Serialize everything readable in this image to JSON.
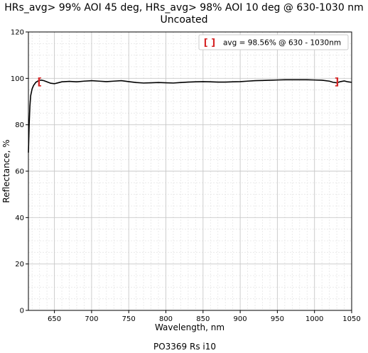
{
  "chart_data": {
    "type": "line",
    "title_line1": "HRs_avg> 99% AOI 45 deg, HRs_avg> 98% AOI 10 deg @ 630-1030 nm",
    "title_line2": "Uncoated",
    "xlabel": "Wavelength, nm",
    "ylabel": "Reflectance, %",
    "footer": "PO3369 Rs i10",
    "xlim": [
      615,
      1050
    ],
    "ylim": [
      0,
      120
    ],
    "x_ticks": [
      650,
      700,
      750,
      800,
      850,
      900,
      950,
      1000,
      1050
    ],
    "y_ticks": [
      0,
      20,
      40,
      60,
      80,
      100,
      120
    ],
    "grid": true,
    "minor_grid": true,
    "line_color": "#000000",
    "marker_color": "#d62728",
    "legend": {
      "marker_text": "[ ]",
      "text": "avg = 98.56% @ 630 - 1030nm",
      "position": "top-right"
    },
    "band_markers": [
      {
        "x": 630,
        "y": 98.5,
        "kind": "["
      },
      {
        "x": 1030,
        "y": 98.5,
        "kind": "]"
      }
    ],
    "series": [
      {
        "x": [
          615,
          616,
          617,
          618,
          620,
          622,
          625,
          628,
          630,
          633,
          636,
          640,
          645,
          650,
          655,
          660,
          670,
          680,
          690,
          700,
          710,
          720,
          730,
          740,
          750,
          760,
          770,
          780,
          790,
          800,
          810,
          820,
          830,
          840,
          850,
          860,
          870,
          880,
          890,
          900,
          910,
          920,
          930,
          940,
          950,
          960,
          970,
          980,
          990,
          1000,
          1010,
          1020,
          1025,
          1030,
          1035,
          1040,
          1045,
          1050
        ],
        "y": [
          68,
          80,
          88,
          92.5,
          95.5,
          97,
          98.3,
          98.9,
          99.2,
          99.2,
          99,
          98.5,
          97.9,
          97.7,
          98.1,
          98.5,
          98.7,
          98.5,
          98.8,
          99,
          98.8,
          98.6,
          98.8,
          99,
          98.6,
          98.2,
          98,
          98.1,
          98.2,
          98.1,
          98,
          98.2,
          98.4,
          98.5,
          98.6,
          98.5,
          98.4,
          98.4,
          98.5,
          98.6,
          98.8,
          99,
          99.1,
          99.2,
          99.3,
          99.4,
          99.4,
          99.4,
          99.4,
          99.3,
          99.2,
          98.8,
          98.3,
          98.1,
          98.6,
          98.9,
          98.5,
          98.3
        ]
      }
    ]
  }
}
